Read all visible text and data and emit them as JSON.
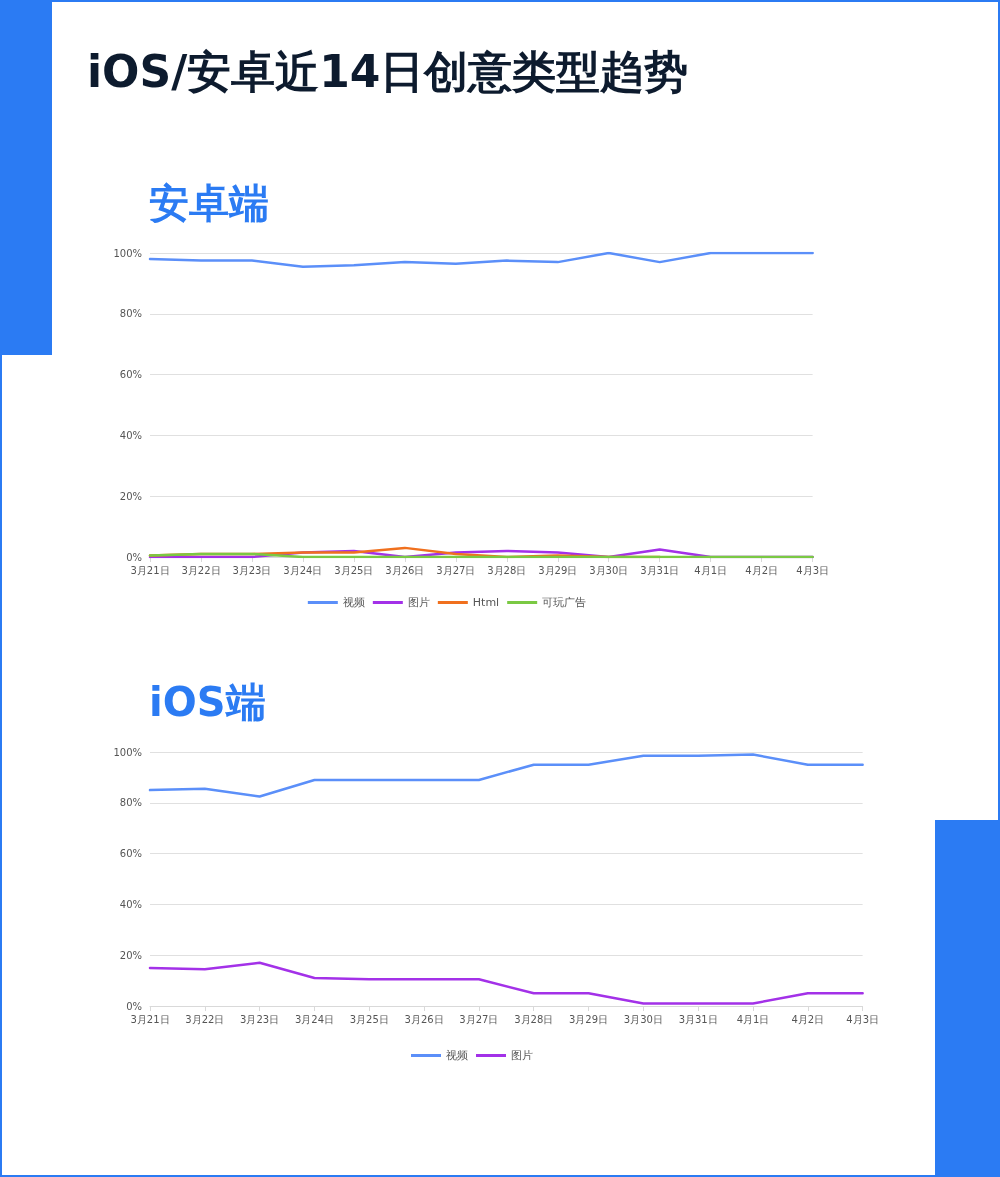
{
  "chart_data": [
    {
      "type": "line",
      "title": "iOS/安卓近14日创意类型趋势",
      "subtitle": "安卓端",
      "categories": [
        "3月21日",
        "3月22日",
        "3月23日",
        "3月24日",
        "3月25日",
        "3月26日",
        "3月27日",
        "3月28日",
        "3月29日",
        "3月30日",
        "3月31日",
        "4月1日",
        "4月2日",
        "4月3日"
      ],
      "series": [
        {
          "name": "视频",
          "color": "#5b8ff9",
          "values": [
            98,
            97.5,
            97.5,
            95.5,
            96,
            97,
            96.5,
            97.5,
            97,
            100,
            97,
            100,
            100,
            100
          ]
        },
        {
          "name": "图片",
          "color": "#a331e8",
          "values": [
            0,
            0,
            0,
            1.5,
            2,
            0,
            1.5,
            2,
            1.5,
            0,
            2.5,
            0,
            0,
            0
          ]
        },
        {
          "name": "Html",
          "color": "#f0701e",
          "values": [
            0.5,
            1,
            1,
            1.5,
            1.5,
            3,
            1,
            0,
            0.5,
            0,
            0,
            null,
            null,
            null
          ]
        },
        {
          "name": "可玩广告",
          "color": "#7ac943",
          "values": [
            0.5,
            1,
            1,
            0,
            0,
            0,
            0,
            0,
            0,
            0,
            0,
            0,
            0,
            0
          ]
        }
      ],
      "ylim": [
        0,
        100
      ],
      "yticks": [
        {
          "value": 0,
          "label": "0%"
        },
        {
          "value": 20,
          "label": "20%"
        },
        {
          "value": 40,
          "label": "40%"
        },
        {
          "value": 60,
          "label": "60%"
        },
        {
          "value": 80,
          "label": "80%"
        },
        {
          "value": 100,
          "label": "100%"
        }
      ],
      "grid": "y",
      "legend": "bottom",
      "marker": "none"
    },
    {
      "type": "line",
      "title": "iOS端",
      "categories": [
        "3月21日",
        "3月22日",
        "3月23日",
        "3月24日",
        "3月25日",
        "3月26日",
        "3月27日",
        "3月28日",
        "3月29日",
        "3月30日",
        "3月31日",
        "4月1日",
        "4月2日",
        "4月3日"
      ],
      "series": [
        {
          "name": "视频",
          "color": "#5b8ff9",
          "values": [
            85,
            85.5,
            82.5,
            89,
            89,
            89,
            89,
            95,
            95,
            98.5,
            98.5,
            99,
            95,
            95
          ]
        },
        {
          "name": "图片",
          "color": "#a331e8",
          "values": [
            15,
            14.5,
            17,
            11,
            10.5,
            10.5,
            10.5,
            5,
            5,
            1,
            1,
            1,
            5,
            5
          ]
        }
      ],
      "ylim": [
        0,
        100
      ],
      "yticks": [
        {
          "value": 0,
          "label": "0%"
        },
        {
          "value": 20,
          "label": "20%"
        },
        {
          "value": 40,
          "label": "40%"
        },
        {
          "value": 60,
          "label": "60%"
        },
        {
          "value": 80,
          "label": "80%"
        },
        {
          "value": 100,
          "label": "100%"
        }
      ],
      "grid": "y",
      "legend": "bottom",
      "marker": "none"
    }
  ]
}
